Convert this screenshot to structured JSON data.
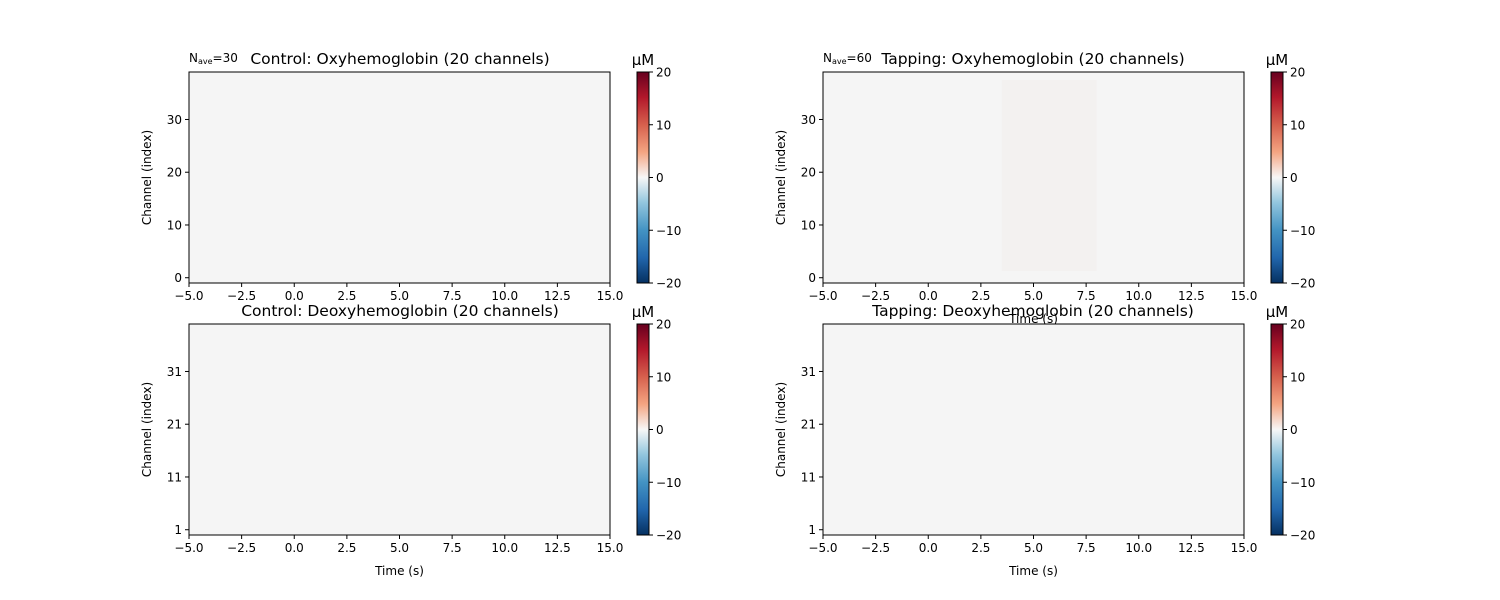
{
  "colorbar": {
    "unit": "μM",
    "ticks": [
      "20",
      "10",
      "0",
      "−10",
      "−20"
    ]
  },
  "colors": {
    "heatmap_low": "#053061",
    "heatmap_mid": "#f7f7f7",
    "heatmap_high": "#67001f",
    "axes_face": "#f5f5f5"
  },
  "chart_data": [
    {
      "type": "heatmap",
      "title": "Control: Oxyhemoglobin (20 channels)",
      "nave_label": "N",
      "nave_sub": "ave",
      "nave_value": "=30",
      "xlabel": "",
      "ylabel": "Channel (index)",
      "xlim": [
        -5.0,
        15.0
      ],
      "ylim": [
        -1,
        39
      ],
      "xticks": [
        "−5.0",
        "−2.5",
        "0.0",
        "2.5",
        "5.0",
        "7.5",
        "10.0",
        "12.5",
        "15.0"
      ],
      "yticks": [
        "0",
        "10",
        "20",
        "30"
      ],
      "clim": [
        -20,
        20
      ],
      "values_note": "near zero everywhere"
    },
    {
      "type": "heatmap",
      "title": "Tapping: Oxyhemoglobin (20 channels)",
      "nave_label": "N",
      "nave_sub": "ave",
      "nave_value": "=60",
      "xlabel": "Time (s)",
      "ylabel": "Channel (index)",
      "xlim": [
        -5.0,
        15.0
      ],
      "ylim": [
        -1,
        39
      ],
      "xticks": [
        "−5.0",
        "−2.5",
        "0.0",
        "2.5",
        "5.0",
        "7.5",
        "10.0",
        "12.5",
        "15.0"
      ],
      "yticks": [
        "0",
        "10",
        "20",
        "30"
      ],
      "clim": [
        -20,
        20
      ]
    },
    {
      "type": "heatmap",
      "title": "Control: Deoxyhemoglobin (20 channels)",
      "xlabel": "Time (s)",
      "ylabel": "Channel (index)",
      "xlim": [
        -5.0,
        15.0
      ],
      "ylim": [
        0,
        40
      ],
      "xticks": [
        "−5.0",
        "−2.5",
        "0.0",
        "2.5",
        "5.0",
        "7.5",
        "10.0",
        "12.5",
        "15.0"
      ],
      "yticks": [
        "1",
        "11",
        "21",
        "31"
      ],
      "clim": [
        -20,
        20
      ]
    },
    {
      "type": "heatmap",
      "title": "Tapping: Deoxyhemoglobin (20 channels)",
      "xlabel": "Time (s)",
      "ylabel": "Channel (index)",
      "xlim": [
        -5.0,
        15.0
      ],
      "ylim": [
        0,
        40
      ],
      "xticks": [
        "−5.0",
        "−2.5",
        "0.0",
        "2.5",
        "5.0",
        "7.5",
        "10.0",
        "12.5",
        "15.0"
      ],
      "yticks": [
        "1",
        "11",
        "21",
        "31"
      ],
      "clim": [
        -20,
        20
      ]
    }
  ]
}
